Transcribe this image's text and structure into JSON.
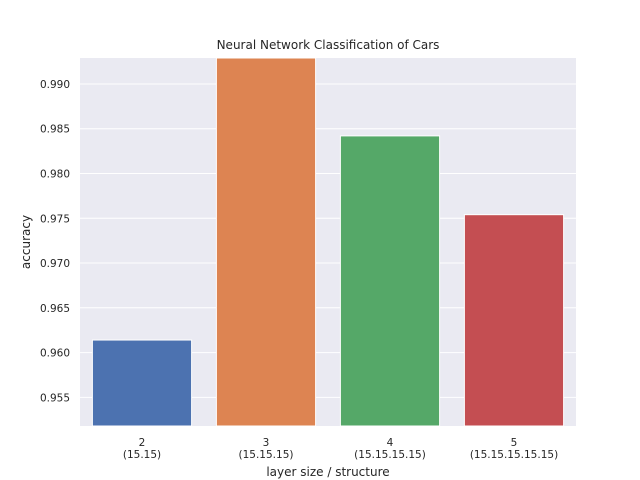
{
  "chart_data": {
    "type": "bar",
    "title": "Neural Network Classification of Cars",
    "xlabel": "layer size / structure",
    "ylabel": "accuracy",
    "categories": [
      [
        "2",
        "(15.15)"
      ],
      [
        "3",
        "(15.15.15)"
      ],
      [
        "4",
        "(15.15.15.15)"
      ],
      [
        "5",
        "(15.15.15.15.15)"
      ]
    ],
    "values": [
      0.9614,
      0.9929,
      0.9842,
      0.9754
    ],
    "colors": [
      "#4c72b0",
      "#dd8452",
      "#55a868",
      "#c44e52"
    ],
    "ylim": [
      0.9518,
      0.9929
    ],
    "yticks": [
      "0.955",
      "0.960",
      "0.965",
      "0.970",
      "0.975",
      "0.980",
      "0.985",
      "0.990"
    ],
    "grid": true,
    "background": "#eaeaf2"
  }
}
